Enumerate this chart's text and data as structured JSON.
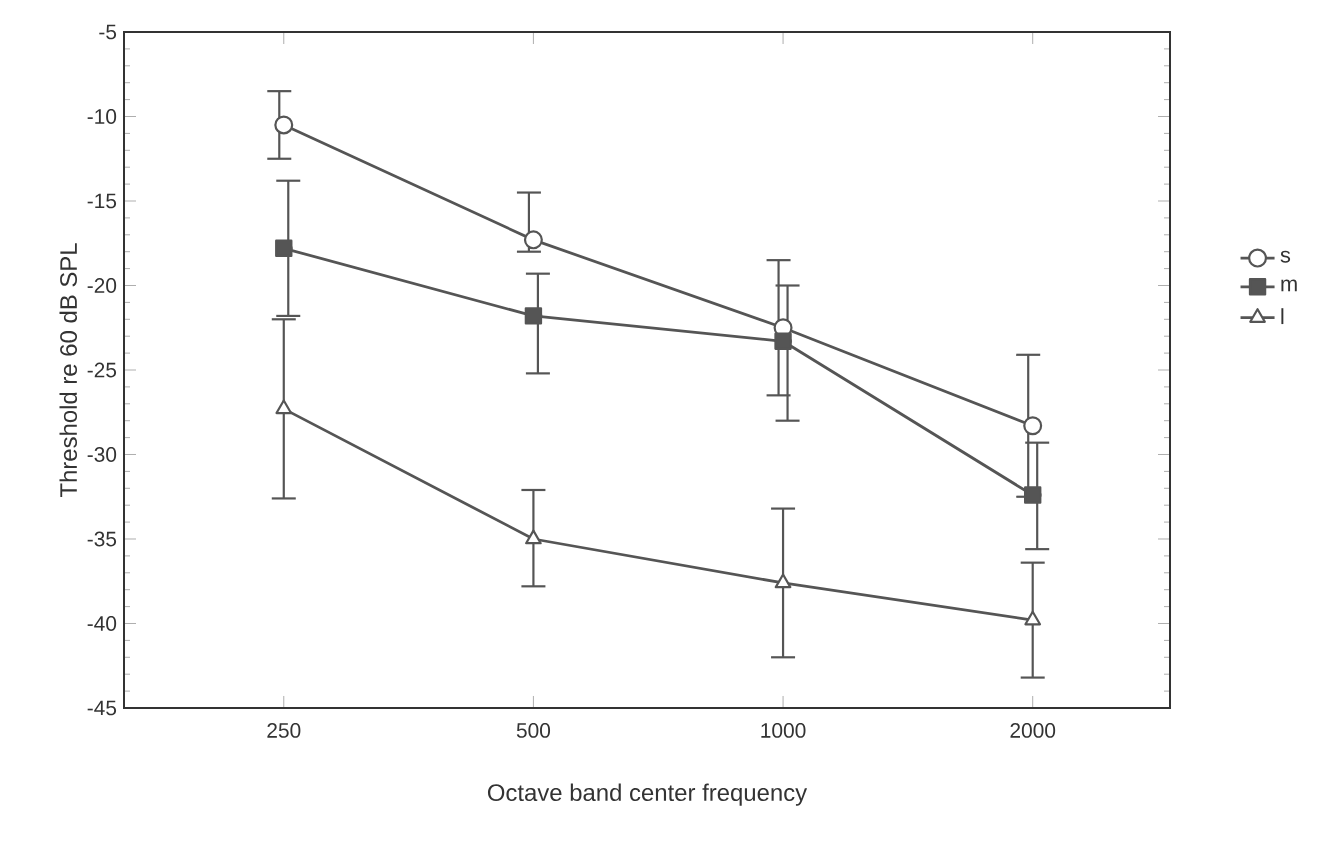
{
  "chart_data": {
    "type": "line",
    "xlabel": "Octave band center frequency",
    "ylabel": "Threshold re 60 dB SPL",
    "categories": [
      "250",
      "500",
      "1000",
      "2000"
    ],
    "series": [
      {
        "name": "s",
        "color": "#555555",
        "marker": "circle",
        "values": [
          -10.5,
          -17.3,
          -22.5,
          -28.3
        ],
        "errors": [
          [
            -12.5,
            -8.5
          ],
          [
            -18,
            -14.5
          ],
          [
            -26.5,
            -18.5
          ],
          [
            -32.5,
            -24.1
          ]
        ]
      },
      {
        "name": "m",
        "color": "#555555",
        "marker": "square",
        "values": [
          -17.8,
          -21.8,
          -23.3,
          -32.4
        ],
        "errors": [
          [
            -21.8,
            -13.8
          ],
          [
            -25.2,
            -19.3
          ],
          [
            -28,
            -20
          ],
          [
            -35.6,
            -29.3
          ]
        ]
      },
      {
        "name": "l",
        "color": "#555555",
        "marker": "triangle",
        "values": [
          -27.3,
          -35,
          -37.6,
          -39.8
        ],
        "errors": [
          [
            -32.6,
            -22
          ],
          [
            -37.8,
            -32.1
          ],
          [
            -42,
            -33.2
          ],
          [
            -43.2,
            -36.4
          ]
        ]
      }
    ],
    "ylim": [
      -45,
      -5
    ],
    "yticks": [
      -45,
      -40,
      -35,
      -30,
      -25,
      -20,
      -15,
      -10,
      -5
    ],
    "grid": false,
    "legend": "right",
    "line_style": "solid"
  }
}
